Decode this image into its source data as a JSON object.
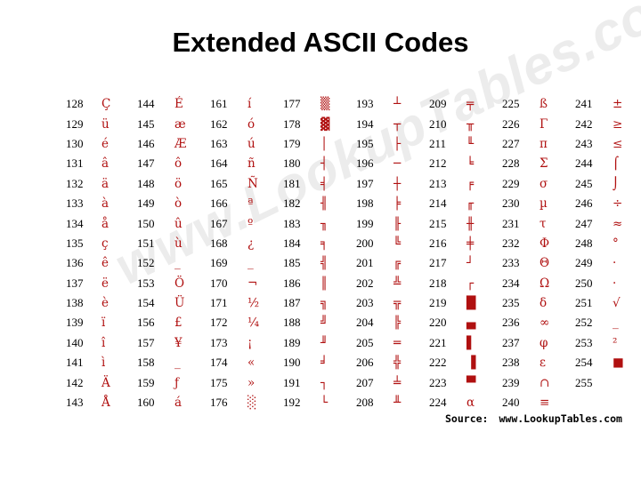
{
  "title": "Extended ASCII Codes",
  "watermark": "www.LookupTables.com",
  "source": {
    "label": "Source:",
    "url": "www.LookupTables.com"
  },
  "columns": [
    [
      [
        "128",
        "Ç"
      ],
      [
        "129",
        "ü"
      ],
      [
        "130",
        "é"
      ],
      [
        "131",
        "â"
      ],
      [
        "132",
        "ä"
      ],
      [
        "133",
        "à"
      ],
      [
        "134",
        "å"
      ],
      [
        "135",
        "ç"
      ],
      [
        "136",
        "ê"
      ],
      [
        "137",
        "ë"
      ],
      [
        "138",
        "è"
      ],
      [
        "139",
        "ï"
      ],
      [
        "140",
        "î"
      ],
      [
        "141",
        "ì"
      ],
      [
        "142",
        "Ä"
      ],
      [
        "143",
        "Å"
      ]
    ],
    [
      [
        "144",
        "É"
      ],
      [
        "145",
        "æ"
      ],
      [
        "146",
        "Æ"
      ],
      [
        "147",
        "ô"
      ],
      [
        "148",
        "ö"
      ],
      [
        "149",
        "ò"
      ],
      [
        "150",
        "û"
      ],
      [
        "151",
        "ù"
      ],
      [
        "152",
        "_"
      ],
      [
        "153",
        "Ö"
      ],
      [
        "154",
        "Ü"
      ],
      [
        "156",
        "£"
      ],
      [
        "157",
        "¥"
      ],
      [
        "158",
        "_"
      ],
      [
        "159",
        "ƒ"
      ],
      [
        "160",
        "á"
      ]
    ],
    [
      [
        "161",
        "í"
      ],
      [
        "162",
        "ó"
      ],
      [
        "163",
        "ú"
      ],
      [
        "164",
        "ñ"
      ],
      [
        "165",
        "Ñ"
      ],
      [
        "166",
        "ª"
      ],
      [
        "167",
        "º"
      ],
      [
        "168",
        "¿"
      ],
      [
        "169",
        "_"
      ],
      [
        "170",
        "¬"
      ],
      [
        "171",
        "½"
      ],
      [
        "172",
        "¼"
      ],
      [
        "173",
        "¡"
      ],
      [
        "174",
        "«"
      ],
      [
        "175",
        "»"
      ],
      [
        "176",
        "░"
      ]
    ],
    [
      [
        "177",
        "▒"
      ],
      [
        "178",
        "▓"
      ],
      [
        "179",
        "│"
      ],
      [
        "180",
        "┤"
      ],
      [
        "181",
        "╡"
      ],
      [
        "182",
        "╢"
      ],
      [
        "183",
        "╖"
      ],
      [
        "184",
        "╕"
      ],
      [
        "185",
        "╣"
      ],
      [
        "186",
        "║"
      ],
      [
        "187",
        "╗"
      ],
      [
        "188",
        "╝"
      ],
      [
        "189",
        "╜"
      ],
      [
        "190",
        "╛"
      ],
      [
        "191",
        "┐"
      ],
      [
        "192",
        "└"
      ]
    ],
    [
      [
        "193",
        "┴"
      ],
      [
        "194",
        "┬"
      ],
      [
        "195",
        "├"
      ],
      [
        "196",
        "─"
      ],
      [
        "197",
        "┼"
      ],
      [
        "198",
        "╞"
      ],
      [
        "199",
        "╟"
      ],
      [
        "200",
        "╚"
      ],
      [
        "201",
        "╔"
      ],
      [
        "202",
        "╩"
      ],
      [
        "203",
        "╦"
      ],
      [
        "204",
        "╠"
      ],
      [
        "205",
        "═"
      ],
      [
        "206",
        "╬"
      ],
      [
        "207",
        "╧"
      ],
      [
        "208",
        "╨"
      ]
    ],
    [
      [
        "209",
        "╤"
      ],
      [
        "210",
        "╥"
      ],
      [
        "211",
        "╙"
      ],
      [
        "212",
        "╘"
      ],
      [
        "213",
        "╒"
      ],
      [
        "214",
        "╓"
      ],
      [
        "215",
        "╫"
      ],
      [
        "216",
        "╪"
      ],
      [
        "217",
        "┘"
      ],
      [
        "218",
        "┌"
      ],
      [
        "219",
        "█"
      ],
      [
        "220",
        "▄"
      ],
      [
        "221",
        "▌"
      ],
      [
        "222",
        "▐"
      ],
      [
        "223",
        "▀"
      ],
      [
        "224",
        "α"
      ]
    ],
    [
      [
        "225",
        "ß"
      ],
      [
        "226",
        "Γ"
      ],
      [
        "227",
        "π"
      ],
      [
        "228",
        "Σ"
      ],
      [
        "229",
        "σ"
      ],
      [
        "230",
        "µ"
      ],
      [
        "231",
        "τ"
      ],
      [
        "232",
        "Φ"
      ],
      [
        "233",
        "Θ"
      ],
      [
        "234",
        "Ω"
      ],
      [
        "235",
        "δ"
      ],
      [
        "236",
        "∞"
      ],
      [
        "237",
        "φ"
      ],
      [
        "238",
        "ε"
      ],
      [
        "239",
        "∩"
      ],
      [
        "240",
        "≡"
      ]
    ],
    [
      [
        "241",
        "±"
      ],
      [
        "242",
        "≥"
      ],
      [
        "243",
        "≤"
      ],
      [
        "244",
        "⌠"
      ],
      [
        "245",
        "⌡"
      ],
      [
        "246",
        "÷"
      ],
      [
        "247",
        "≈"
      ],
      [
        "248",
        "°"
      ],
      [
        "249",
        "·"
      ],
      [
        "250",
        "·"
      ],
      [
        "251",
        "√"
      ],
      [
        "252",
        "_"
      ],
      [
        "253",
        "²"
      ],
      [
        "254",
        "■"
      ],
      [
        "255",
        ""
      ]
    ]
  ]
}
